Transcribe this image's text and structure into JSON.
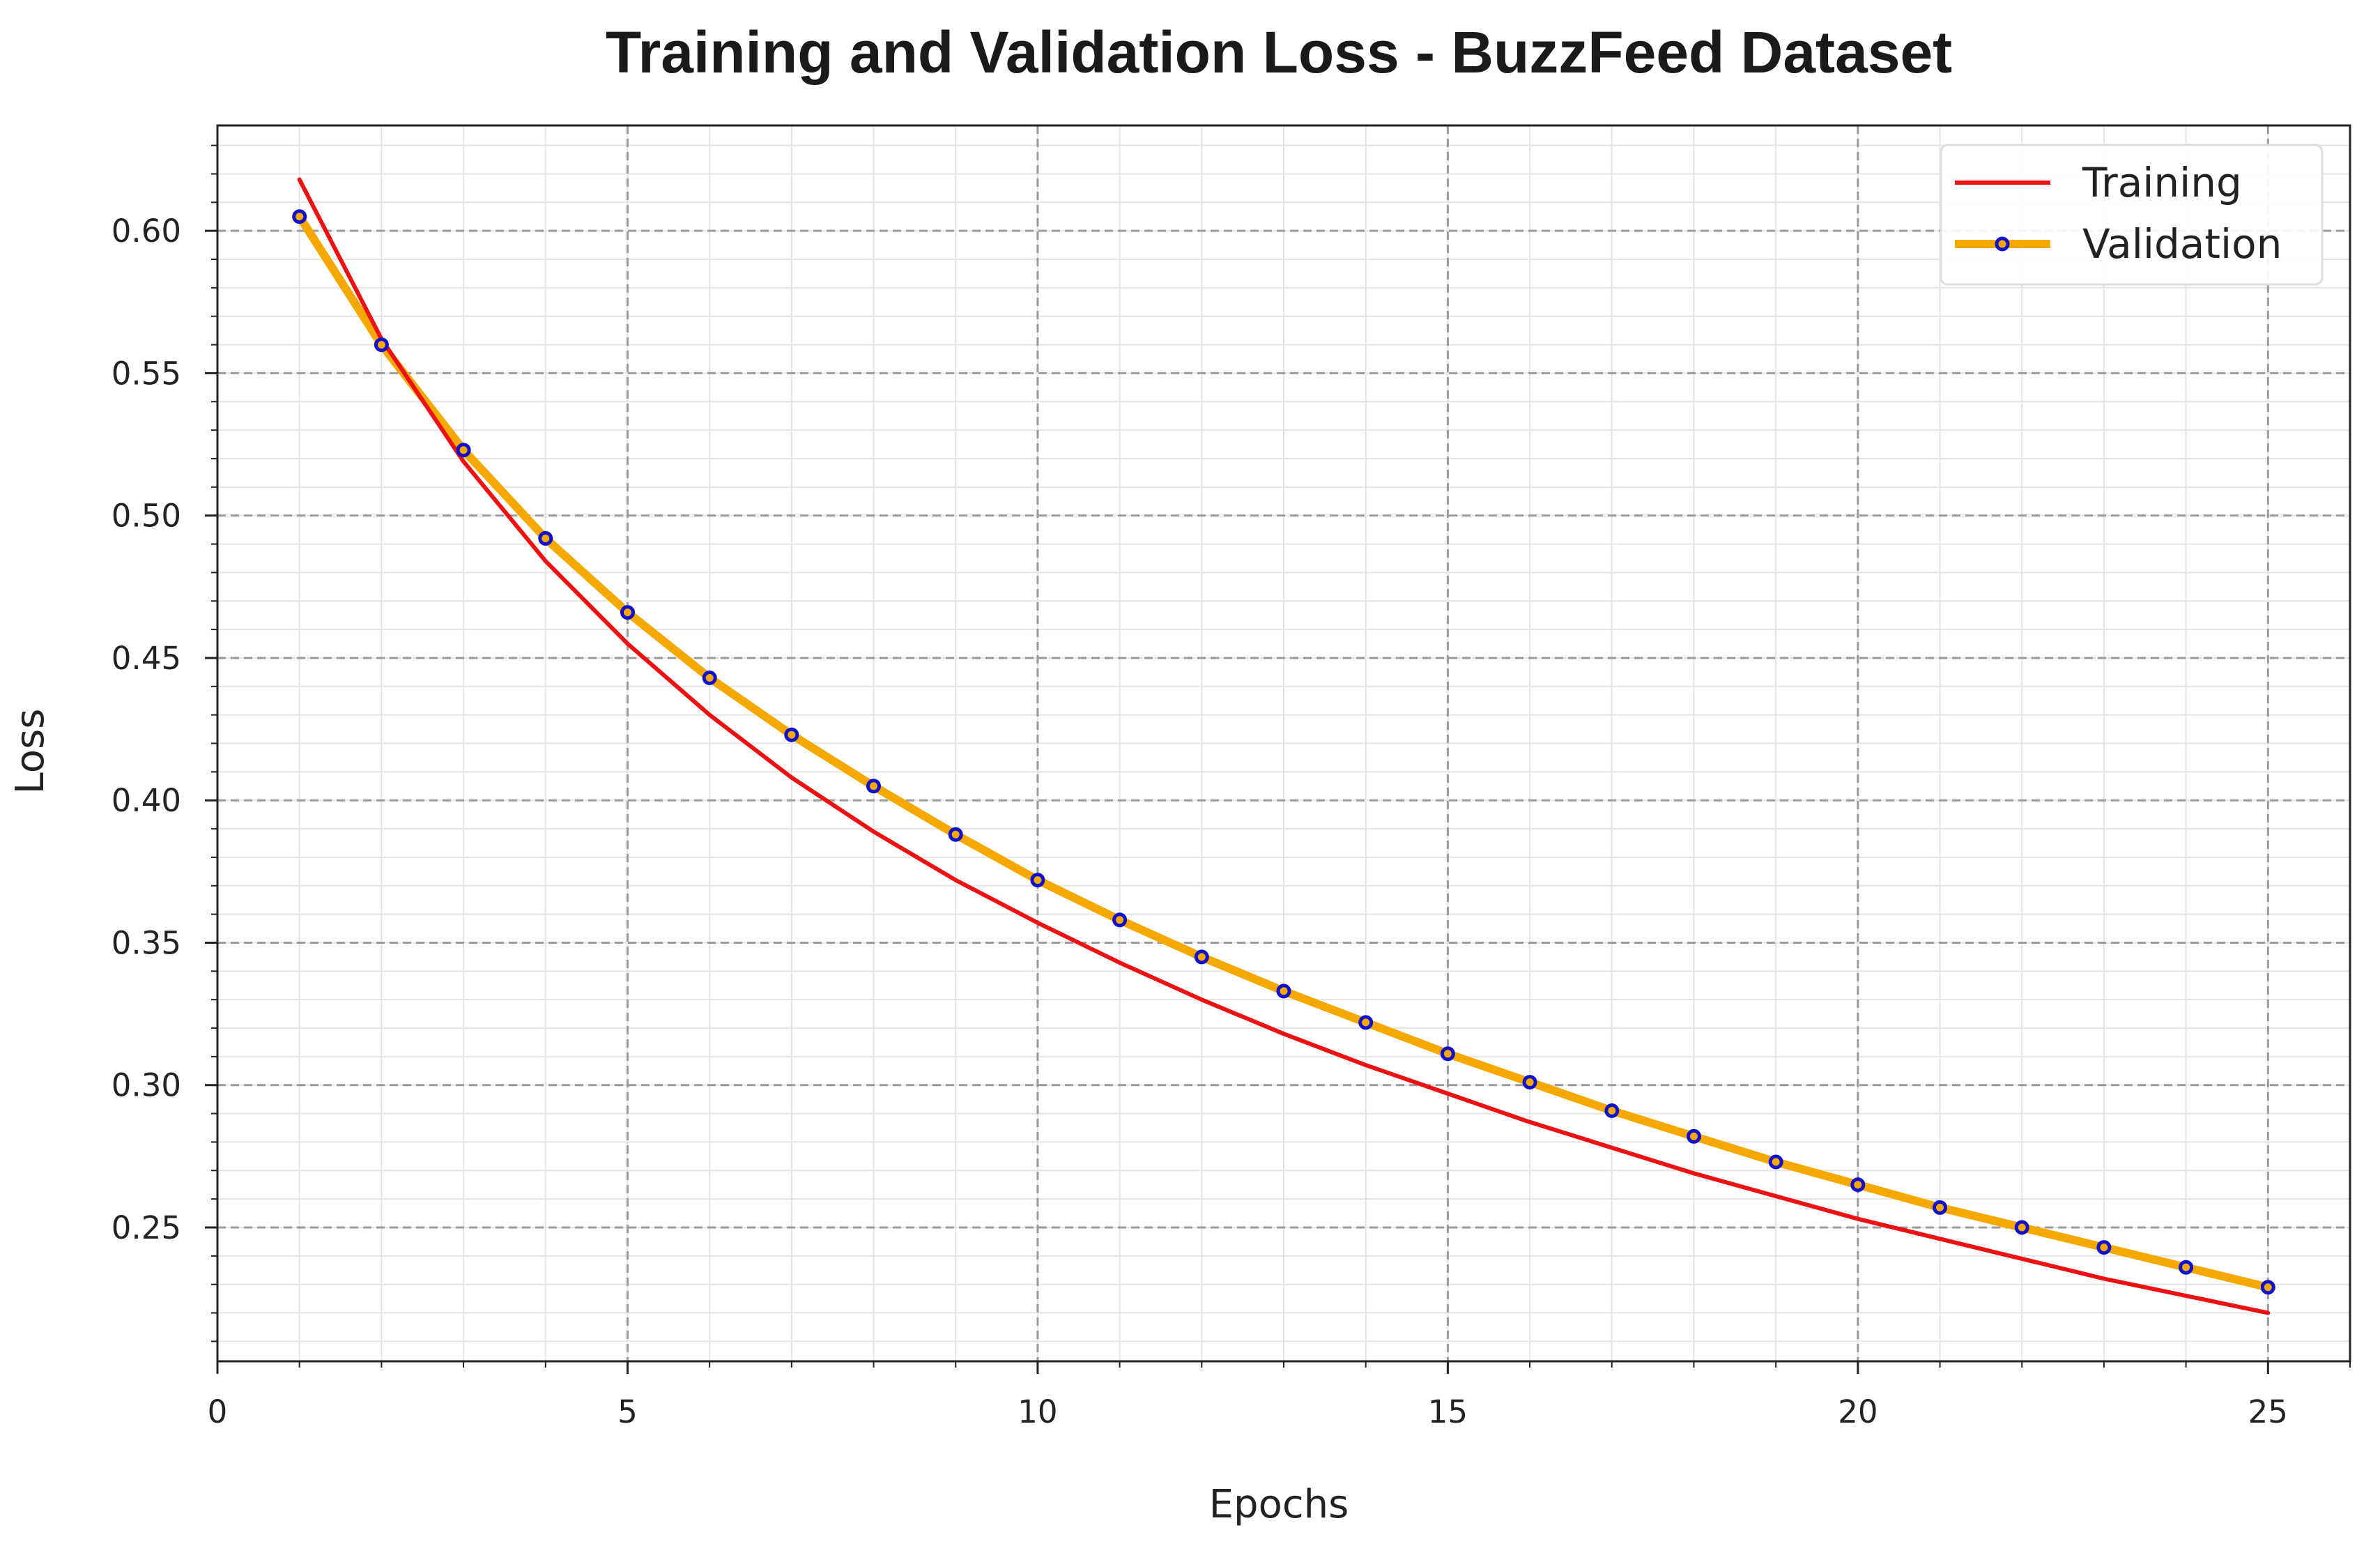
{
  "chart_data": {
    "type": "line",
    "title": "Training and Validation Loss - BuzzFeed Dataset",
    "xlabel": "Epochs",
    "ylabel": "Loss",
    "xlim": [
      0,
      26
    ],
    "ylim": [
      0.203,
      0.637
    ],
    "x_ticks": [
      0,
      5,
      10,
      15,
      20,
      25
    ],
    "y_ticks": [
      0.25,
      0.3,
      0.35,
      0.4,
      0.45,
      0.5,
      0.55,
      0.6
    ],
    "y_tick_labels": [
      "0.25",
      "0.30",
      "0.35",
      "0.40",
      "0.45",
      "0.50",
      "0.55",
      "0.60"
    ],
    "grid": true,
    "legend_position": "top-right",
    "x": [
      1,
      2,
      3,
      4,
      5,
      6,
      7,
      8,
      9,
      10,
      11,
      12,
      13,
      14,
      15,
      16,
      17,
      18,
      19,
      20,
      21,
      22,
      23,
      24,
      25
    ],
    "series": [
      {
        "name": "Training",
        "color": "#ee1111",
        "marker": "none",
        "values": [
          0.618,
          0.562,
          0.519,
          0.484,
          0.455,
          0.43,
          0.408,
          0.389,
          0.372,
          0.357,
          0.343,
          0.33,
          0.318,
          0.307,
          0.297,
          0.287,
          0.278,
          0.269,
          0.261,
          0.253,
          0.246,
          0.239,
          0.232,
          0.226,
          0.22
        ]
      },
      {
        "name": "Validation",
        "color": "#f5a800",
        "marker_color": "#1111cc",
        "marker": "circle",
        "values": [
          0.605,
          0.56,
          0.523,
          0.492,
          0.466,
          0.443,
          0.423,
          0.405,
          0.388,
          0.372,
          0.358,
          0.345,
          0.333,
          0.322,
          0.311,
          0.301,
          0.291,
          0.282,
          0.273,
          0.265,
          0.257,
          0.25,
          0.243,
          0.236,
          0.229
        ]
      }
    ]
  }
}
